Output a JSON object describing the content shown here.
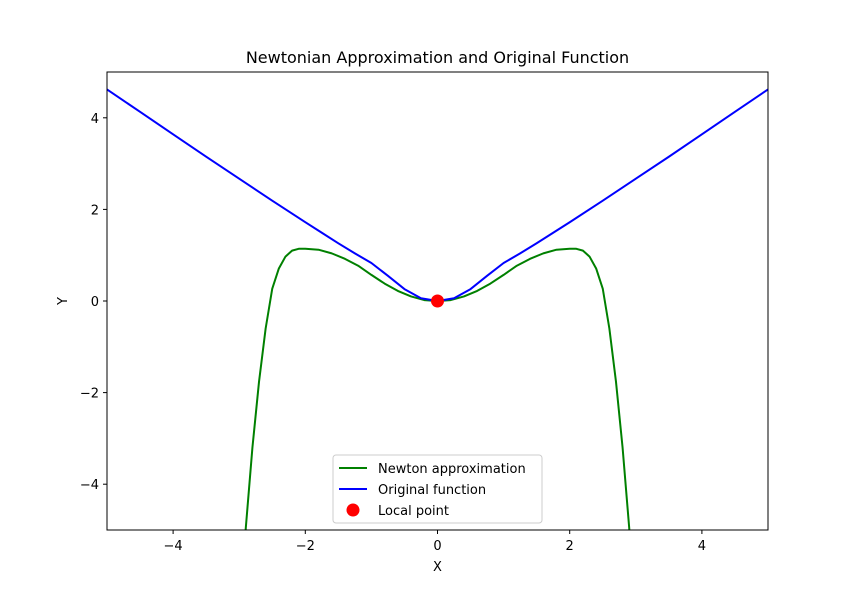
{
  "chart_data": {
    "type": "line",
    "title": "Newtonian Approximation and Original Function",
    "xlabel": "X",
    "ylabel": "Y",
    "xlim": [
      -5,
      5
    ],
    "ylim": [
      -5,
      5
    ],
    "xticks": [
      -4,
      -2,
      0,
      2,
      4
    ],
    "yticks": [
      -4,
      -2,
      0,
      2,
      4
    ],
    "xtick_labels": [
      "−4",
      "−2",
      "0",
      "2",
      "4"
    ],
    "ytick_labels": [
      "−4",
      "−2",
      "0",
      "2",
      "4"
    ],
    "grid": false,
    "legend_position": "lower-center",
    "series": [
      {
        "name": "Newton approximation",
        "color": "#008000",
        "x": [
          -3.0,
          -2.9,
          -2.8,
          -2.7,
          -2.6,
          -2.5,
          -2.4,
          -2.3,
          -2.2,
          -2.1,
          -2.0,
          -1.8,
          -1.6,
          -1.4,
          -1.2,
          -1.0,
          -0.8,
          -0.6,
          -0.4,
          -0.2,
          0.0,
          0.2,
          0.4,
          0.6,
          0.8,
          1.0,
          1.2,
          1.4,
          1.6,
          1.8,
          2.0,
          2.1,
          2.2,
          2.3,
          2.4,
          2.5,
          2.6,
          2.7,
          2.8,
          2.9,
          3.0
        ],
        "y": [
          -7.0,
          -4.95,
          -3.2,
          -1.76,
          -0.6,
          0.27,
          0.71,
          0.97,
          1.1,
          1.14,
          1.14,
          1.12,
          1.04,
          0.92,
          0.77,
          0.57,
          0.38,
          0.22,
          0.1,
          0.02,
          0.0,
          0.02,
          0.1,
          0.22,
          0.38,
          0.57,
          0.77,
          0.92,
          1.04,
          1.12,
          1.14,
          1.14,
          1.1,
          0.97,
          0.71,
          0.27,
          -0.6,
          -1.76,
          -3.2,
          -4.95,
          -7.0
        ]
      },
      {
        "name": "Original function",
        "color": "#0000ff",
        "x": [
          -5.0,
          -4.5,
          -4.0,
          -3.5,
          -3.0,
          -2.5,
          -2.0,
          -1.75,
          -1.5,
          -1.25,
          -1.0,
          -0.75,
          -0.5,
          -0.25,
          0.0,
          0.25,
          0.5,
          0.75,
          1.0,
          1.25,
          1.5,
          1.75,
          2.0,
          2.5,
          3.0,
          3.5,
          4.0,
          4.5,
          5.0
        ],
        "y": [
          4.62,
          4.13,
          3.64,
          3.15,
          2.67,
          2.19,
          1.72,
          1.49,
          1.26,
          1.04,
          0.83,
          0.55,
          0.26,
          0.06,
          0.0,
          0.06,
          0.26,
          0.55,
          0.83,
          1.04,
          1.26,
          1.49,
          1.72,
          2.19,
          2.67,
          3.15,
          3.64,
          4.13,
          4.62
        ]
      },
      {
        "name": "Local point",
        "color": "#ff0000",
        "type": "scatter",
        "x": [
          0
        ],
        "y": [
          0
        ]
      }
    ]
  }
}
